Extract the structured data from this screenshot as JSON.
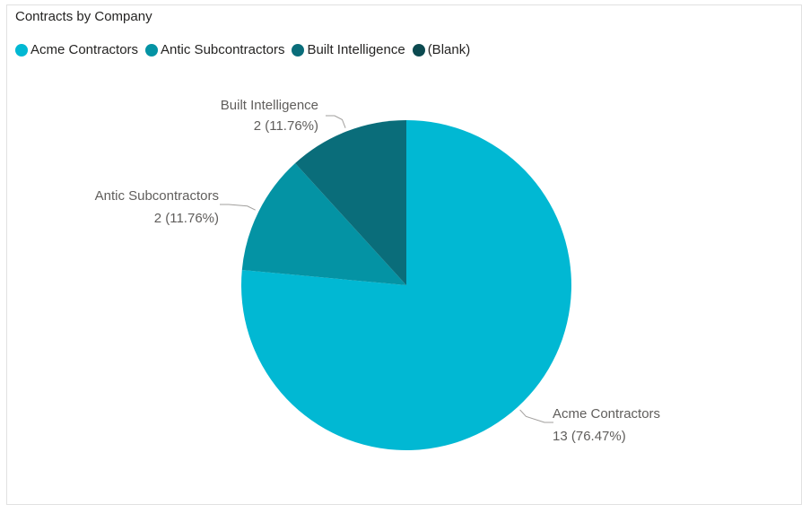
{
  "chart_data": {
    "type": "pie",
    "title": "Contracts by Company",
    "legend_position": "top-left",
    "slices": [
      {
        "label": "Acme Contractors",
        "value": 13,
        "percent": "76.47%",
        "color": "#01B8D3"
      },
      {
        "label": "Antic Subcontractors",
        "value": 2,
        "percent": "11.76%",
        "color": "#0493A4"
      },
      {
        "label": "Built Intelligence",
        "value": 2,
        "percent": "11.76%",
        "color": "#0A6D7A"
      },
      {
        "label": "(Blank)",
        "value": 0,
        "percent": "0%",
        "color": "#0C4A50"
      }
    ],
    "data_labels": [
      {
        "name": "Acme Contractors",
        "value_text": "13 (76.47%)"
      },
      {
        "name": "Antic Subcontractors",
        "value_text": "2 (11.76%)"
      },
      {
        "name": "Built Intelligence",
        "value_text": "2 (11.76%)"
      }
    ]
  }
}
